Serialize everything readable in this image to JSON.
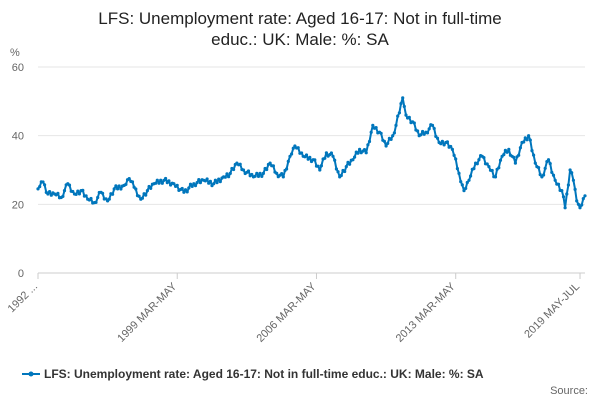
{
  "chart_data": {
    "type": "line",
    "title_line1": "LFS: Unemployment rate: Aged 16-17: Not in full-time",
    "title_line2": "educ.: UK: Male: %: SA",
    "ylabel": "%",
    "ylim": [
      0,
      60
    ],
    "yticks": [
      "0",
      "20",
      "40",
      "60"
    ],
    "xtick_labels": [
      "1992 ...",
      "1999 MAR-MAY",
      "2006 MAR-MAY",
      "2013 MAR-MAY",
      "2019 MAY-JUL"
    ],
    "xtick_indices": [
      0,
      84,
      168,
      252,
      327
    ],
    "grid": true,
    "legend_position": "bottom",
    "source_label": "Source:",
    "series": [
      {
        "name": "LFS: Unemployment rate: Aged 16-17: Not in full-time educ.: UK: Male: %: SA",
        "color": "#0076bc",
        "anchors": [
          [
            0,
            24.5
          ],
          [
            3,
            26.5
          ],
          [
            6,
            23
          ],
          [
            10,
            23
          ],
          [
            14,
            22
          ],
          [
            18,
            26
          ],
          [
            22,
            23
          ],
          [
            26,
            24
          ],
          [
            30,
            21.5
          ],
          [
            34,
            20.5
          ],
          [
            38,
            23.5
          ],
          [
            42,
            21
          ],
          [
            46,
            24.5
          ],
          [
            52,
            25.5
          ],
          [
            55,
            27.5
          ],
          [
            58,
            25
          ],
          [
            62,
            21.5
          ],
          [
            66,
            24
          ],
          [
            70,
            26
          ],
          [
            76,
            27
          ],
          [
            82,
            26
          ],
          [
            88,
            23.5
          ],
          [
            94,
            26
          ],
          [
            100,
            27
          ],
          [
            106,
            26
          ],
          [
            112,
            28
          ],
          [
            116,
            29
          ],
          [
            120,
            32
          ],
          [
            124,
            30
          ],
          [
            130,
            28
          ],
          [
            136,
            29
          ],
          [
            140,
            32
          ],
          [
            144,
            29
          ],
          [
            148,
            28
          ],
          [
            152,
            34
          ],
          [
            155,
            37
          ],
          [
            160,
            34
          ],
          [
            166,
            33
          ],
          [
            170,
            30
          ],
          [
            174,
            35
          ],
          [
            178,
            34
          ],
          [
            182,
            28
          ],
          [
            186,
            31
          ],
          [
            190,
            33
          ],
          [
            194,
            36
          ],
          [
            198,
            35
          ],
          [
            202,
            43
          ],
          [
            206,
            41
          ],
          [
            210,
            37
          ],
          [
            214,
            40
          ],
          [
            216,
            43
          ],
          [
            220,
            51
          ],
          [
            222,
            46
          ],
          [
            226,
            44
          ],
          [
            230,
            40
          ],
          [
            234,
            41
          ],
          [
            238,
            43
          ],
          [
            242,
            38
          ],
          [
            246,
            38
          ],
          [
            250,
            36
          ],
          [
            254,
            29
          ],
          [
            257,
            24
          ],
          [
            260,
            27
          ],
          [
            264,
            32
          ],
          [
            268,
            34
          ],
          [
            272,
            31
          ],
          [
            276,
            28
          ],
          [
            280,
            34
          ],
          [
            284,
            36
          ],
          [
            288,
            32
          ],
          [
            292,
            38
          ],
          [
            296,
            40
          ],
          [
            300,
            32
          ],
          [
            304,
            28
          ],
          [
            308,
            33
          ],
          [
            312,
            27
          ],
          [
            316,
            24
          ],
          [
            318,
            19
          ],
          [
            321,
            30
          ],
          [
            323,
            27
          ],
          [
            325,
            21
          ],
          [
            327,
            19
          ],
          [
            330,
            22.5
          ]
        ]
      }
    ]
  }
}
